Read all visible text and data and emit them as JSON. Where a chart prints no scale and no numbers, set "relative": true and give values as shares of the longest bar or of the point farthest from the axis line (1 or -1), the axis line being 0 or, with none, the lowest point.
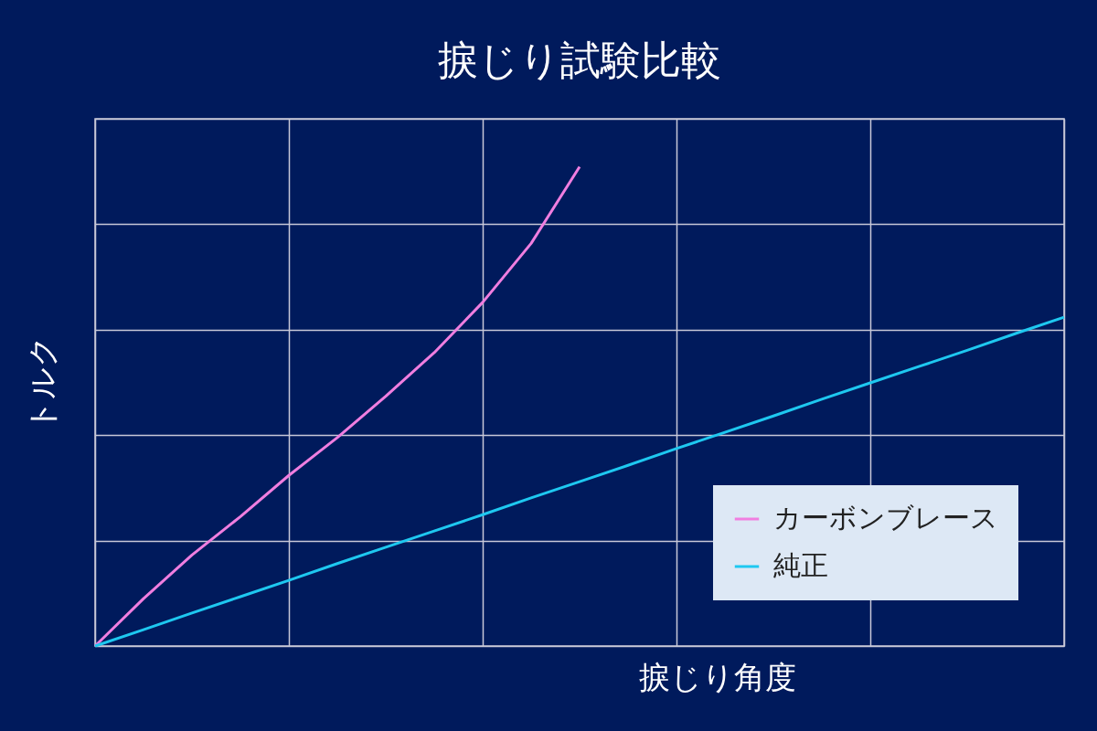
{
  "chart_data": {
    "type": "line",
    "title": "捩じり試験比較",
    "xlabel": "捩じり角度",
    "ylabel": "トルク",
    "relative": true,
    "grid": true,
    "legend": "bottom right",
    "marker": "none",
    "categories": [
      null,
      null,
      null,
      null,
      null,
      null,
      null,
      null,
      null,
      null,
      null,
      null,
      null,
      null,
      null,
      null,
      null,
      null,
      null,
      null,
      null
    ],
    "series": [
      {
        "name": "カーボンブレース",
        "color": "#f07ee0",
        "values": [
          0,
          0.099,
          0.19,
          0.27,
          0.356,
          0.435,
          0.521,
          0.612,
          0.717,
          0.84,
          1.0,
          null,
          null,
          null,
          null,
          null,
          null,
          null,
          null,
          null,
          null
        ]
      },
      {
        "name": "純正",
        "color": "#1ec8f0",
        "values": [
          0,
          0.034,
          0.069,
          0.103,
          0.137,
          0.172,
          0.206,
          0.24,
          0.274,
          0.309,
          0.343,
          0.377,
          0.412,
          0.446,
          0.48,
          0.515,
          0.549,
          0.583,
          0.617,
          0.652,
          0.686
        ]
      }
    ]
  }
}
